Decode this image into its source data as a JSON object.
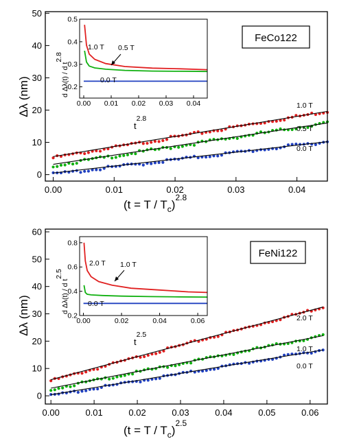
{
  "charts": [
    {
      "id": "top",
      "material": "FeCo122",
      "xlabel": {
        "main": "(t = T / T",
        "sub": "c",
        "close": ")",
        "sup": "2.8"
      },
      "ylabel": "Δλ  (nm)",
      "xlim": [
        -0.0013,
        0.045
      ],
      "ylim": [
        -2,
        50.5
      ],
      "xticks": [
        "0.00",
        "0.01",
        "0.02",
        "0.03",
        "0.04"
      ],
      "xtick_values": [
        0,
        0.01,
        0.02,
        0.03,
        0.04
      ],
      "yticks": [
        "0",
        "10",
        "20",
        "30",
        "40",
        "50"
      ],
      "ytick_values": [
        0,
        10,
        20,
        30,
        40,
        50
      ],
      "curves": [
        {
          "field": "1.0 T",
          "color": "#e02020",
          "x": [
            0,
            0.045
          ],
          "y": [
            5.2,
            19.6
          ]
        },
        {
          "field": "0.5 T",
          "color": "#10b010",
          "x": [
            0,
            0.045
          ],
          "y": [
            2.8,
            16.0
          ]
        },
        {
          "field": "0.0 T",
          "color": "#2040c0",
          "x": [
            0,
            0.045
          ],
          "y": [
            0.1,
            10.2
          ]
        }
      ],
      "inset": {
        "ylabel_main": "d Δλ(t) / d t",
        "ylabel_sup": "2.8",
        "xlabel_main": "t",
        "xlabel_sup": "2.8",
        "xlim": [
          -0.0015,
          0.045
        ],
        "ylim": [
          0.15,
          0.5
        ],
        "xticks": [
          "0.00",
          "0.01",
          "0.02",
          "0.03",
          "0.04"
        ],
        "xtick_values": [
          0,
          0.01,
          0.02,
          0.03,
          0.04
        ],
        "yticks": [
          "0.2",
          "0.3",
          "0.4",
          "0.5"
        ],
        "ytick_values": [
          0.2,
          0.3,
          0.4,
          0.5
        ],
        "curves": [
          {
            "field": "1.0 T",
            "color": "#e02020",
            "x": [
              0.0003,
              0.001,
              0.002,
              0.004,
              0.008,
              0.015,
              0.025,
              0.035,
              0.045
            ],
            "y": [
              0.475,
              0.385,
              0.345,
              0.322,
              0.303,
              0.29,
              0.283,
              0.28,
              0.276
            ]
          },
          {
            "field": "0.5 T",
            "color": "#10b010",
            "x": [
              0.0003,
              0.001,
              0.002,
              0.004,
              0.008,
              0.015,
              0.025,
              0.035,
              0.045
            ],
            "y": [
              0.36,
              0.31,
              0.292,
              0.284,
              0.278,
              0.273,
              0.27,
              0.269,
              0.268
            ]
          },
          {
            "field": "0.0 T",
            "color": "#2040c0",
            "x": [
              0,
              0.045
            ],
            "y": [
              0.225,
              0.225
            ]
          }
        ],
        "arrow_label": "0.5 T",
        "labels": [
          "1.0 T",
          "0.5 T",
          "0.0 T"
        ]
      }
    },
    {
      "id": "bottom",
      "material": "FeNi122",
      "xlabel": {
        "main": "(t = T / T",
        "sub": "c",
        "close": ")",
        "sup": "2.5"
      },
      "ylabel": "Δλ  (nm)",
      "xlim": [
        -0.0013,
        0.064
      ],
      "ylim": [
        -3,
        61
      ],
      "xticks": [
        "0.00",
        "0.01",
        "0.02",
        "0.03",
        "0.04",
        "0.05",
        "0.06"
      ],
      "xtick_values": [
        0,
        0.01,
        0.02,
        0.03,
        0.04,
        0.05,
        0.06
      ],
      "yticks": [
        "0",
        "10",
        "20",
        "30",
        "40",
        "50",
        "60"
      ],
      "ytick_values": [
        0,
        10,
        20,
        30,
        40,
        50,
        60
      ],
      "curves": [
        {
          "field": "2.0 T",
          "color": "#e02020",
          "x": [
            0,
            0.063
          ],
          "y": [
            5.5,
            32.5
          ]
        },
        {
          "field": "1.0 T",
          "color": "#10b010",
          "x": [
            0,
            0.063
          ],
          "y": [
            2.4,
            22.0
          ]
        },
        {
          "field": "0.0 T",
          "color": "#2040c0",
          "x": [
            0,
            0.063
          ],
          "y": [
            0.0,
            16.8
          ]
        }
      ],
      "inset": {
        "ylabel_main": "d Δλ(t) / d t",
        "ylabel_sup": "2.5",
        "xlabel_main": "t",
        "xlabel_sup": "2.5",
        "xlim": [
          -0.002,
          0.065
        ],
        "ylim": [
          0.2,
          0.85
        ],
        "xticks": [
          "0.00",
          "0.02",
          "0.04",
          "0.06"
        ],
        "xtick_values": [
          0,
          0.02,
          0.04,
          0.06
        ],
        "yticks": [
          "0.2",
          "0.4",
          "0.6",
          "0.8"
        ],
        "ytick_values": [
          0.2,
          0.4,
          0.6,
          0.8
        ],
        "curves": [
          {
            "field": "2.0 T",
            "color": "#e02020",
            "x": [
              0.0003,
              0.001,
              0.002,
              0.004,
              0.008,
              0.015,
              0.025,
              0.04,
              0.055,
              0.065
            ],
            "y": [
              0.8,
              0.65,
              0.57,
              0.52,
              0.48,
              0.45,
              0.425,
              0.41,
              0.395,
              0.39
            ]
          },
          {
            "field": "1.0 T",
            "color": "#10b010",
            "x": [
              0.0003,
              0.001,
              0.002,
              0.004,
              0.01,
              0.02,
              0.035,
              0.05,
              0.065
            ],
            "y": [
              0.45,
              0.39,
              0.375,
              0.37,
              0.365,
              0.36,
              0.356,
              0.354,
              0.352
            ]
          },
          {
            "field": "0.0 T",
            "color": "#2040c0",
            "x": [
              0,
              0.065
            ],
            "y": [
              0.3,
              0.3
            ]
          }
        ],
        "arrow_label": "1.0 T",
        "labels": [
          "2.0 T",
          "1.0 T",
          "0.0 T"
        ]
      }
    }
  ]
}
